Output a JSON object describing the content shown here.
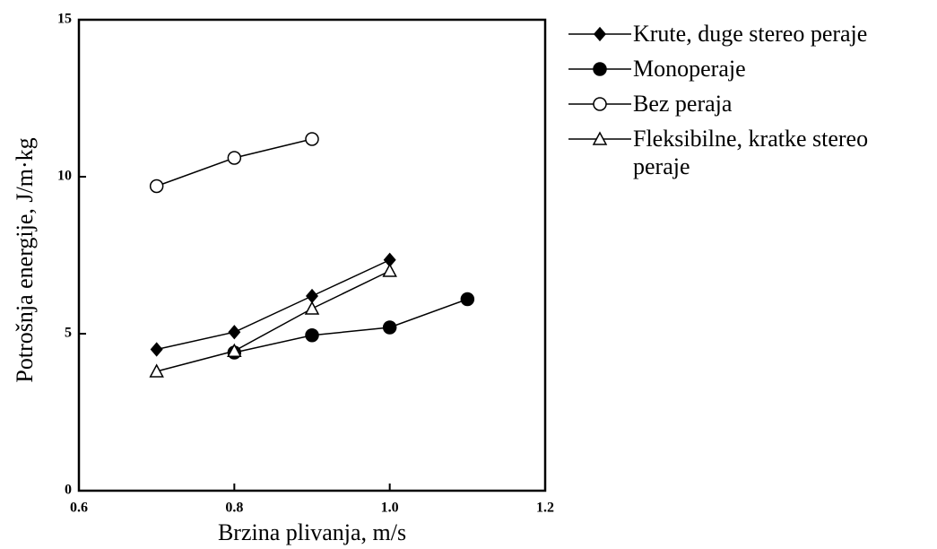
{
  "chart_data": {
    "type": "line",
    "xlabel": "Brzina plivanja, m/s",
    "ylabel": "Potrošnja energije, J/m·kg",
    "xlim": [
      0.6,
      1.2
    ],
    "xticks": [
      0.6,
      0.8,
      {
        "value": 1,
        "label": "1.0"
      },
      1.2
    ],
    "ylim": [
      0,
      15
    ],
    "yticks": [
      0,
      5,
      10,
      15
    ],
    "legend": "right",
    "series": [
      {
        "name": "Krute, duge stereo peraje",
        "color": "#000000",
        "marker": "diamond",
        "filled": true,
        "x": [
          0.7,
          0.8,
          0.9,
          1.0
        ],
        "values": [
          4.5,
          5.05,
          6.2,
          7.35
        ]
      },
      {
        "name": "Monoperaje",
        "color": "#000000",
        "marker": "circle",
        "filled": true,
        "x": [
          0.8,
          0.9,
          1.0,
          1.1
        ],
        "values": [
          4.4,
          4.95,
          5.2,
          6.1
        ]
      },
      {
        "name": "Bez peraja",
        "color": "#000000",
        "marker": "circle",
        "filled": false,
        "x": [
          0.7,
          0.8,
          0.9
        ],
        "values": [
          9.7,
          10.6,
          11.2
        ]
      },
      {
        "name": "Fleksibilne, kratke stereo peraje",
        "color": "#000000",
        "marker": "triangle",
        "filled": false,
        "x": [
          0.7,
          0.8,
          0.9,
          1.0
        ],
        "values": [
          3.8,
          4.45,
          5.8,
          7.0
        ]
      }
    ]
  }
}
